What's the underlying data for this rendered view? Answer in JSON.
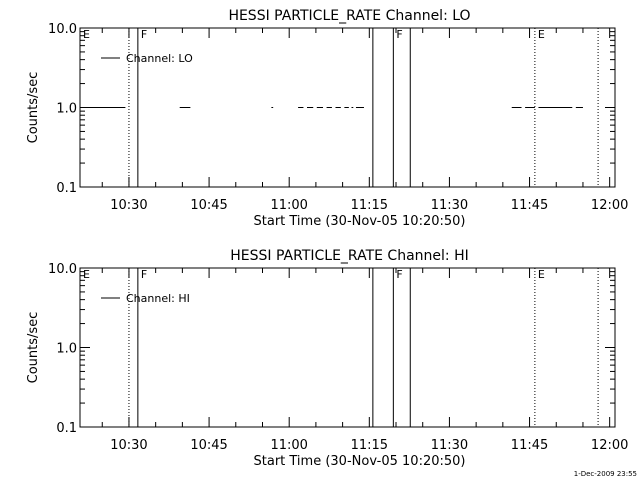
{
  "chart_data": [
    {
      "type": "line",
      "title": "HESSI PARTICLE_RATE Channel: LO",
      "xlabel": "Start Time (30-Nov-05 10:20:50)",
      "ylabel": "Counts/sec",
      "y_scale": "log",
      "ylim": [
        0.1,
        10.0
      ],
      "xlim": [
        "10:20:50",
        "12:01:00"
      ],
      "x_ticks": [
        "10:30",
        "10:45",
        "11:00",
        "11:15",
        "11:30",
        "11:45",
        "12:00"
      ],
      "y_ticks": [
        "0.1",
        "1.0",
        "10.0"
      ],
      "legend": {
        "entries": [
          "Channel: LO"
        ],
        "placement": "top-left"
      },
      "series": [
        {
          "name": "Channel: LO",
          "segments": [
            {
              "x": [
                "10:22:30",
                "10:29:20"
              ],
              "y": 1.0
            },
            {
              "x": [
                "10:39:30",
                "10:41:30"
              ],
              "y": 1.0
            },
            {
              "x": [
                "10:56:40",
                "10:57:00"
              ],
              "y": 1.0
            },
            {
              "x": [
                "11:01:40",
                "11:02:40"
              ],
              "y": 1.0
            },
            {
              "x": [
                "11:03:20",
                "11:04:30"
              ],
              "y": 1.0
            },
            {
              "x": [
                "11:05:10",
                "11:06:20"
              ],
              "y": 1.0
            },
            {
              "x": [
                "11:07:00",
                "11:08:00"
              ],
              "y": 1.0
            },
            {
              "x": [
                "11:08:40",
                "11:09:40"
              ],
              "y": 1.0
            },
            {
              "x": [
                "11:10:20",
                "11:11:10"
              ],
              "y": 1.0
            },
            {
              "x": [
                "11:11:40",
                "11:12:00"
              ],
              "y": 1.0
            },
            {
              "x": [
                "11:12:30",
                "11:14:00"
              ],
              "y": 1.0
            },
            {
              "x": [
                "11:41:40",
                "11:43:30"
              ],
              "y": 1.0
            },
            {
              "x": [
                "11:44:10",
                "11:46:00"
              ],
              "y": 1.0
            },
            {
              "x": [
                "11:46:40",
                "11:53:00"
              ],
              "y": 1.0
            },
            {
              "x": [
                "11:53:40",
                "11:55:00"
              ],
              "y": 1.0
            }
          ]
        }
      ],
      "event_lines": [
        {
          "label": "E",
          "x": "10:20:50",
          "style": "dotted",
          "label_x": "10:20:50"
        },
        {
          "label": "",
          "x": "10:30:00",
          "style": "dotted",
          "label_x": ""
        },
        {
          "label": "F",
          "x": "10:31:40",
          "style": "solid",
          "label_x": "10:31:40"
        },
        {
          "label": "",
          "x": "11:15:40",
          "style": "solid",
          "label_x": ""
        },
        {
          "label": "F",
          "x": "11:19:30",
          "style": "solid",
          "label_x": "11:19:30"
        },
        {
          "label": "",
          "x": "11:22:40",
          "style": "solid",
          "label_x": ""
        },
        {
          "label": "E",
          "x": "11:46:00",
          "style": "dotted",
          "label_x": "11:46:00"
        },
        {
          "label": "",
          "x": "11:57:50",
          "style": "dotted",
          "label_x": ""
        }
      ]
    },
    {
      "type": "line",
      "title": "HESSI PARTICLE_RATE Channel: HI",
      "xlabel": "Start Time (30-Nov-05 10:20:50)",
      "ylabel": "Counts/sec",
      "y_scale": "log",
      "ylim": [
        0.1,
        10.0
      ],
      "xlim": [
        "10:20:50",
        "12:01:00"
      ],
      "x_ticks": [
        "10:30",
        "10:45",
        "11:00",
        "11:15",
        "11:30",
        "11:45",
        "12:00"
      ],
      "y_ticks": [
        "0.1",
        "1.0",
        "10.0"
      ],
      "legend": {
        "entries": [
          "Channel: HI"
        ],
        "placement": "top-left"
      },
      "series": [
        {
          "name": "Channel: HI",
          "segments": []
        }
      ],
      "event_lines": [
        {
          "label": "E",
          "x": "10:20:50",
          "style": "dotted",
          "label_x": "10:20:50"
        },
        {
          "label": "",
          "x": "10:30:00",
          "style": "dotted",
          "label_x": ""
        },
        {
          "label": "F",
          "x": "10:31:40",
          "style": "solid",
          "label_x": "10:31:40"
        },
        {
          "label": "",
          "x": "11:15:40",
          "style": "solid",
          "label_x": ""
        },
        {
          "label": "F",
          "x": "11:19:30",
          "style": "solid",
          "label_x": "11:19:30"
        },
        {
          "label": "",
          "x": "11:22:40",
          "style": "solid",
          "label_x": ""
        },
        {
          "label": "E",
          "x": "11:46:00",
          "style": "dotted",
          "label_x": "11:46:00"
        },
        {
          "label": "",
          "x": "11:57:50",
          "style": "dotted",
          "label_x": ""
        }
      ]
    }
  ],
  "footer": {
    "timestamp": "1-Dec-2009 23:55"
  }
}
